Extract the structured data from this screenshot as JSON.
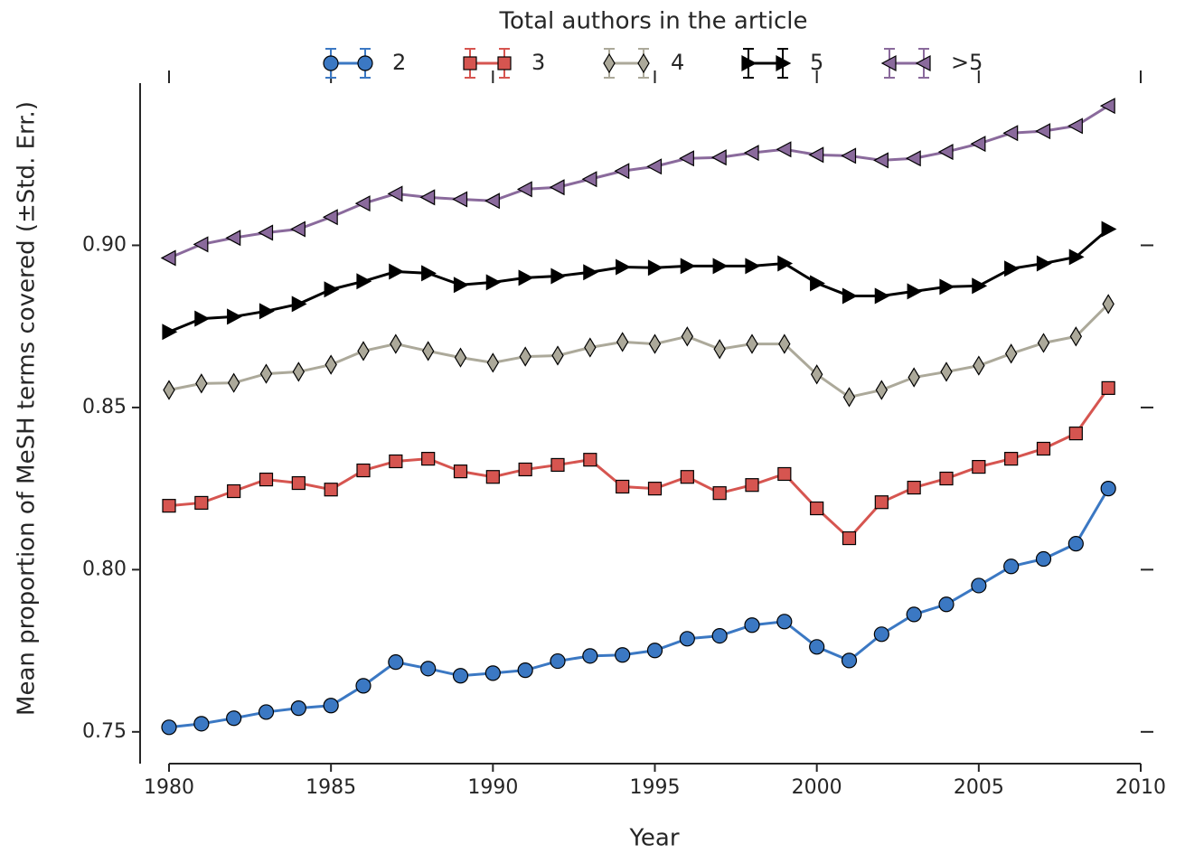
{
  "chart_data": {
    "type": "line",
    "legend_title": "Total authors in the article",
    "xlabel": "Year",
    "ylabel": "Mean proportion of MeSH terms covered (±Std. Err.)",
    "x": [
      1980,
      1981,
      1982,
      1983,
      1984,
      1985,
      1986,
      1987,
      1988,
      1989,
      1990,
      1991,
      1992,
      1993,
      1994,
      1995,
      1996,
      1997,
      1998,
      1999,
      2000,
      2001,
      2002,
      2003,
      2004,
      2005,
      2006,
      2007,
      2008,
      2009
    ],
    "xlim": [
      1980,
      2010
    ],
    "xticks": [
      1980,
      1985,
      1990,
      1995,
      2000,
      2005,
      2010
    ],
    "ylim": [
      0.7402,
      0.95
    ],
    "yticks": [
      0.75,
      {
        "value": 0.8,
        "label": "0.80"
      },
      0.85,
      {
        "value": 0.9,
        "label": "0.90"
      }
    ],
    "legend": "upper center",
    "series": [
      {
        "name": "2",
        "color": "#3b78c3",
        "marker": "circle",
        "values": [
          0.7514,
          0.7525,
          0.7542,
          0.7561,
          0.7573,
          0.7581,
          0.7642,
          0.7715,
          0.7695,
          0.7673,
          0.7681,
          0.769,
          0.7718,
          0.7734,
          0.7737,
          0.7751,
          0.7787,
          0.7796,
          0.7829,
          0.784,
          0.7762,
          0.772,
          0.7801,
          0.7862,
          0.7893,
          0.7951,
          0.801,
          0.8033,
          0.808,
          0.825
        ]
      },
      {
        "name": "3",
        "color": "#d65550",
        "marker": "square",
        "values": [
          0.8197,
          0.8206,
          0.8242,
          0.8278,
          0.8267,
          0.8247,
          0.8306,
          0.8334,
          0.8342,
          0.8303,
          0.8286,
          0.8309,
          0.8323,
          0.8339,
          0.8256,
          0.825,
          0.8286,
          0.8236,
          0.8261,
          0.8295,
          0.8189,
          0.8097,
          0.8208,
          0.8253,
          0.8281,
          0.8317,
          0.8342,
          0.8373,
          0.842,
          0.856
        ]
      },
      {
        "name": "4",
        "color": "#aca99a",
        "marker": "thin-diamond",
        "values": [
          0.8554,
          0.8574,
          0.8576,
          0.8604,
          0.861,
          0.8632,
          0.8674,
          0.8696,
          0.8674,
          0.8654,
          0.8638,
          0.8657,
          0.866,
          0.8685,
          0.8702,
          0.8696,
          0.8719,
          0.868,
          0.8696,
          0.8696,
          0.8602,
          0.8532,
          0.8554,
          0.8593,
          0.861,
          0.8629,
          0.8666,
          0.8699,
          0.8719,
          0.8819
        ]
      },
      {
        "name": "5",
        "color": "#000000",
        "marker": "triangle-right",
        "values": [
          0.8733,
          0.8774,
          0.878,
          0.8797,
          0.8819,
          0.8864,
          0.8889,
          0.8919,
          0.8914,
          0.8878,
          0.8886,
          0.89,
          0.8905,
          0.8917,
          0.8933,
          0.8931,
          0.8936,
          0.8936,
          0.8936,
          0.8944,
          0.8883,
          0.8844,
          0.8844,
          0.8858,
          0.8872,
          0.8875,
          0.8928,
          0.8944,
          0.8964,
          0.905
        ]
      },
      {
        "name": ">5",
        "color": "#8a6a9c",
        "marker": "triangle-left",
        "values": [
          0.8961,
          0.9003,
          0.9023,
          0.9039,
          0.905,
          0.9087,
          0.9129,
          0.9159,
          0.9148,
          0.9142,
          0.9137,
          0.9173,
          0.9179,
          0.9204,
          0.9229,
          0.9243,
          0.9268,
          0.9271,
          0.9285,
          0.9296,
          0.9279,
          0.9276,
          0.9262,
          0.9268,
          0.9288,
          0.9313,
          0.9346,
          0.9352,
          0.9368,
          0.943
        ]
      }
    ]
  }
}
